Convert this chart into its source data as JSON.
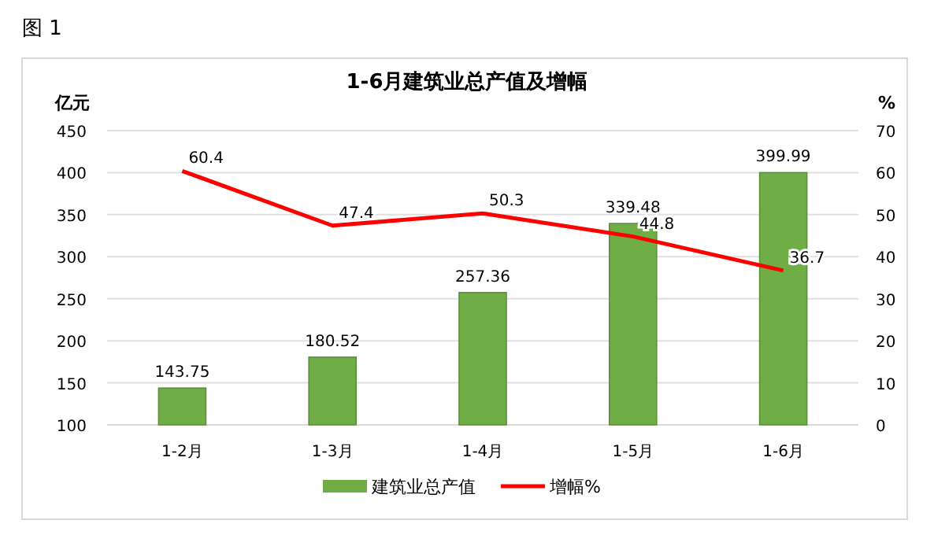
{
  "chart_data": {
    "type": "bar",
    "title": "1-6月建筑业总产值及增幅",
    "ylabel": "亿元",
    "y2label": "%",
    "annotations": [
      "图 1"
    ],
    "categories": [
      "1-2月",
      "1-3月",
      "1-4月",
      "1-5月",
      "1-6月"
    ],
    "series": [
      {
        "name": "建筑业总产值",
        "color": "#70ad47",
        "values": [
          143.75,
          180.52,
          257.36,
          339.48,
          399.99
        ]
      },
      {
        "name": "增幅%",
        "type": "line",
        "axis": "y2",
        "color": "#ff0000",
        "values": [
          60.4,
          47.4,
          50.3,
          44.8,
          36.7
        ]
      }
    ],
    "ylim": [
      100,
      450
    ],
    "yticks": [
      100,
      150,
      200,
      250,
      300,
      350,
      400,
      450
    ],
    "y2lim": [
      0,
      70
    ],
    "y2ticks": [
      0,
      10,
      20,
      30,
      40,
      50,
      60,
      70
    ],
    "grid": "y",
    "data_labels": true,
    "legend": "bottom"
  }
}
